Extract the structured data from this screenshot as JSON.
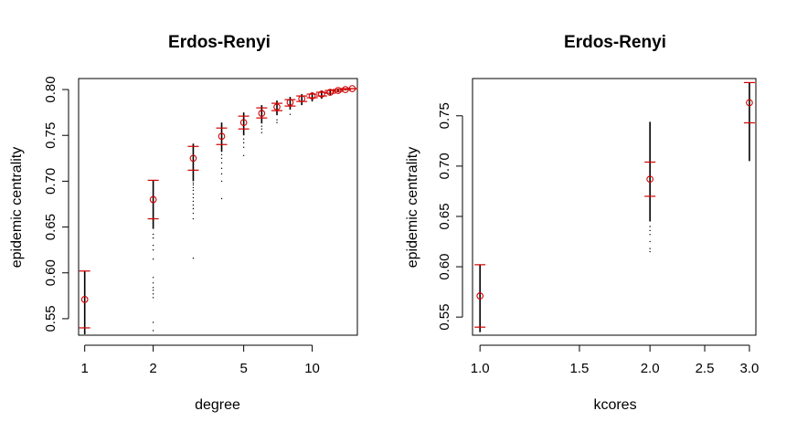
{
  "chart_data": [
    {
      "type": "scatter",
      "title": "Erdos-Renyi",
      "xlabel": "degree",
      "ylabel": "epidemic centrality",
      "x_scale": "log",
      "xlim": [
        0.94,
        15.8
      ],
      "ylim": [
        0.532,
        0.812
      ],
      "x_ticks": [
        1,
        2,
        5,
        10
      ],
      "x_tick_labels": [
        "1",
        "2",
        "5",
        "10"
      ],
      "y_ticks": [
        0.55,
        0.6,
        0.65,
        0.7,
        0.75,
        0.8
      ],
      "y_tick_labels": [
        "0.55",
        "0.60",
        "0.65",
        "0.70",
        "0.75",
        "0.80"
      ],
      "grid": false,
      "groups": [
        {
          "x": 1,
          "mean": 0.571,
          "sd_low": 0.54,
          "sd_high": 0.602,
          "range_low": 0.533,
          "range_high": 0.602,
          "outliers": []
        },
        {
          "x": 2,
          "mean": 0.68,
          "sd_low": 0.659,
          "sd_high": 0.701,
          "range_low": 0.648,
          "range_high": 0.701,
          "outliers": [
            0.537,
            0.546,
            0.573,
            0.577,
            0.581,
            0.584,
            0.589,
            0.595,
            0.615,
            0.625,
            0.63,
            0.638,
            0.642
          ]
        },
        {
          "x": 3,
          "mean": 0.725,
          "sd_low": 0.712,
          "sd_high": 0.738,
          "range_low": 0.7,
          "range_high": 0.741,
          "outliers": [
            0.616,
            0.659,
            0.665,
            0.67,
            0.674,
            0.678,
            0.682,
            0.686,
            0.69,
            0.693,
            0.696,
            0.698
          ]
        },
        {
          "x": 4,
          "mean": 0.749,
          "sd_low": 0.74,
          "sd_high": 0.758,
          "range_low": 0.732,
          "range_high": 0.764,
          "outliers": [
            0.681,
            0.7,
            0.708,
            0.714,
            0.72,
            0.725,
            0.729
          ]
        },
        {
          "x": 5,
          "mean": 0.764,
          "sd_low": 0.757,
          "sd_high": 0.771,
          "range_low": 0.75,
          "range_high": 0.775,
          "outliers": [
            0.728,
            0.737,
            0.742,
            0.746
          ]
        },
        {
          "x": 6,
          "mean": 0.774,
          "sd_low": 0.769,
          "sd_high": 0.78,
          "range_low": 0.763,
          "range_high": 0.783,
          "outliers": [
            0.753,
            0.757,
            0.76
          ]
        },
        {
          "x": 7,
          "mean": 0.781,
          "sd_low": 0.777,
          "sd_high": 0.785,
          "range_low": 0.772,
          "range_high": 0.788,
          "outliers": [
            0.764,
            0.767
          ]
        },
        {
          "x": 8,
          "mean": 0.786,
          "sd_low": 0.782,
          "sd_high": 0.789,
          "range_low": 0.778,
          "range_high": 0.792,
          "outliers": [
            0.773
          ]
        },
        {
          "x": 9,
          "mean": 0.79,
          "sd_low": 0.787,
          "sd_high": 0.793,
          "range_low": 0.783,
          "range_high": 0.795,
          "outliers": []
        },
        {
          "x": 10,
          "mean": 0.793,
          "sd_low": 0.791,
          "sd_high": 0.795,
          "range_low": 0.787,
          "range_high": 0.797,
          "outliers": []
        },
        {
          "x": 11,
          "mean": 0.795,
          "sd_low": 0.793,
          "sd_high": 0.797,
          "range_low": 0.79,
          "range_high": 0.799,
          "outliers": []
        },
        {
          "x": 12,
          "mean": 0.797,
          "sd_low": 0.796,
          "sd_high": 0.799,
          "range_low": 0.794,
          "range_high": 0.8,
          "outliers": []
        },
        {
          "x": 13,
          "mean": 0.799,
          "sd_low": 0.798,
          "sd_high": 0.8,
          "range_low": 0.797,
          "range_high": 0.801,
          "outliers": []
        },
        {
          "x": 14,
          "mean": 0.8,
          "sd_low": 0.8,
          "sd_high": 0.801,
          "range_low": 0.799,
          "range_high": 0.801,
          "outliers": []
        },
        {
          "x": 15,
          "mean": 0.801,
          "sd_low": 0.801,
          "sd_high": 0.801,
          "range_low": 0.801,
          "range_high": 0.801,
          "outliers": []
        }
      ],
      "colors": {
        "mean": "#d40000",
        "sd": "#d40000",
        "range": "#000000",
        "axis": "#000000"
      }
    },
    {
      "type": "scatter",
      "title": "Erdos-Renyi",
      "xlabel": "kcores",
      "ylabel": "epidemic centrality",
      "x_scale": "log",
      "xlim": [
        0.97,
        3.08
      ],
      "ylim": [
        0.532,
        0.787
      ],
      "x_ticks": [
        1.0,
        1.5,
        2.0,
        2.5,
        3.0
      ],
      "x_tick_labels": [
        "1.0",
        "1.5",
        "2.0",
        "2.5",
        "3.0"
      ],
      "y_ticks": [
        0.55,
        0.6,
        0.65,
        0.7,
        0.75
      ],
      "y_tick_labels": [
        "0.55",
        "0.60",
        "0.65",
        "0.70",
        "0.75"
      ],
      "grid": false,
      "groups": [
        {
          "x": 1,
          "mean": 0.571,
          "sd_low": 0.54,
          "sd_high": 0.602,
          "range_low": 0.535,
          "range_high": 0.602,
          "outliers": []
        },
        {
          "x": 2,
          "mean": 0.687,
          "sd_low": 0.67,
          "sd_high": 0.704,
          "range_low": 0.645,
          "range_high": 0.744,
          "outliers": [
            0.615,
            0.618,
            0.625,
            0.632,
            0.636,
            0.64
          ]
        },
        {
          "x": 3,
          "mean": 0.763,
          "sd_low": 0.743,
          "sd_high": 0.783,
          "range_low": 0.705,
          "range_high": 0.783,
          "outliers": []
        }
      ],
      "colors": {
        "mean": "#d40000",
        "sd": "#d40000",
        "range": "#000000",
        "axis": "#000000"
      }
    }
  ]
}
